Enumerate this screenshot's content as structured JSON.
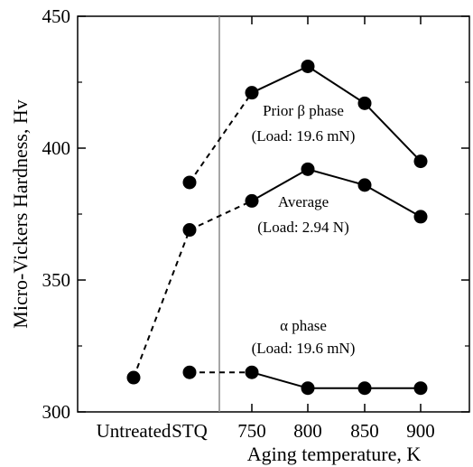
{
  "chart_data": {
    "type": "line",
    "ylabel": "Micro-Vickers Hardness, Hv",
    "xlabel": "Aging temperature, K",
    "categories": [
      "Untreated",
      "STQ",
      "750",
      "800",
      "850",
      "900"
    ],
    "ylim": [
      300,
      450
    ],
    "yticks": [
      300,
      350,
      400,
      450
    ],
    "grid": false,
    "vertical_separator_between": [
      "STQ",
      "750"
    ],
    "series": [
      {
        "values": [
          null,
          387,
          421,
          431,
          417,
          395
        ],
        "dashed_segments": [
          [
            1,
            2
          ]
        ],
        "annotation": [
          "Prior β phase",
          "(Load: 19.6 mN)"
        ]
      },
      {
        "values": [
          313,
          369,
          380,
          392,
          386,
          374
        ],
        "dashed_segments": [
          [
            0,
            1
          ],
          [
            1,
            2
          ]
        ],
        "annotation": [
          "Average",
          "(Load: 2.94 N)"
        ]
      },
      {
        "values": [
          null,
          315,
          315,
          309,
          309,
          309
        ],
        "dashed_segments": [
          [
            1,
            2
          ]
        ],
        "annotation": [
          "α phase",
          "(Load: 19.6 mN)"
        ]
      }
    ],
    "colors": {
      "marker": "#000000",
      "line": "#000000",
      "separator": "#888888"
    }
  }
}
